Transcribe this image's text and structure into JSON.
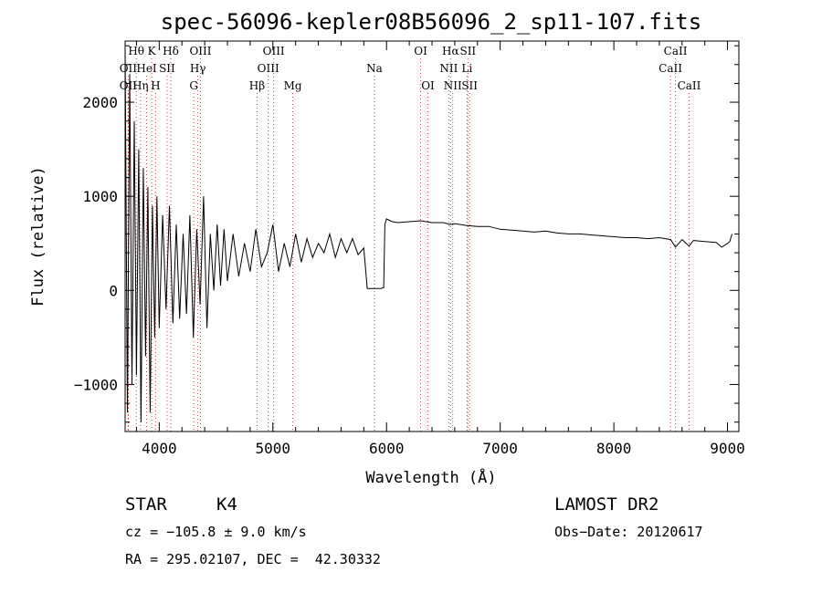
{
  "chart_data": {
    "type": "line",
    "title": "spec-56096-kepler08B56096_2_sp11-107.fits",
    "xlabel": "Wavelength (Å)",
    "ylabel": "Flux (relative)",
    "xlim": [
      3700,
      9100
    ],
    "ylim": [
      -1500,
      2650
    ],
    "xticks": [
      4000,
      5000,
      6000,
      7000,
      8000,
      9000
    ],
    "xtick_labels": [
      "4000",
      "5000",
      "6000",
      "7000",
      "8000",
      "9000"
    ],
    "yticks": [
      -1000,
      0,
      1000,
      2000
    ],
    "ytick_labels": [
      "−1000",
      "0",
      "1000",
      "2000"
    ],
    "grid": false,
    "legend": "none",
    "line_color": "#000000",
    "marker_color": "#d04040",
    "series": [
      {
        "x": [
          3700,
          3720,
          3740,
          3760,
          3780,
          3800,
          3820,
          3840,
          3860,
          3880,
          3900,
          3920,
          3940,
          3960,
          3980,
          4000,
          4030,
          4060,
          4090,
          4120,
          4150,
          4180,
          4210,
          4240,
          4270,
          4300,
          4330,
          4360,
          4390,
          4420,
          4450,
          4480,
          4510,
          4540,
          4570,
          4600,
          4650,
          4700,
          4750,
          4800,
          4850,
          4900,
          4950,
          5000,
          5050,
          5100,
          5150,
          5200,
          5250,
          5300,
          5350,
          5400,
          5450,
          5500,
          5550,
          5600,
          5650,
          5700,
          5750,
          5800,
          5830,
          5850,
          5900,
          5950,
          5975,
          5985,
          6000,
          6050,
          6100,
          6200,
          6300,
          6400,
          6500,
          6560,
          6600,
          6700,
          6800,
          6900,
          7000,
          7100,
          7200,
          7300,
          7400,
          7500,
          7600,
          7700,
          7800,
          7900,
          8000,
          8100,
          8200,
          8300,
          8400,
          8500,
          8542,
          8600,
          8662,
          8700,
          8800,
          8900,
          8950,
          9000,
          9020,
          9040
        ],
        "y": [
          2600,
          -1300,
          2300,
          -1000,
          1800,
          -900,
          1500,
          -1400,
          1300,
          -700,
          1100,
          -1300,
          900,
          -500,
          1000,
          -400,
          800,
          -200,
          900,
          -350,
          700,
          -300,
          600,
          -250,
          800,
          -500,
          650,
          -150,
          1000,
          -400,
          600,
          0,
          700,
          50,
          650,
          100,
          600,
          150,
          500,
          200,
          650,
          250,
          400,
          700,
          200,
          500,
          250,
          600,
          300,
          550,
          350,
          500,
          400,
          600,
          350,
          550,
          400,
          550,
          380,
          450,
          20,
          20,
          20,
          20,
          30,
          700,
          760,
          730,
          720,
          730,
          740,
          720,
          720,
          700,
          710,
          690,
          680,
          680,
          650,
          640,
          630,
          620,
          630,
          610,
          600,
          600,
          590,
          580,
          570,
          560,
          560,
          550,
          560,
          540,
          460,
          540,
          470,
          530,
          520,
          510,
          460,
          500,
          520,
          600
        ]
      }
    ],
    "lines": {
      "row1": [
        {
          "label": "Hθ",
          "x": 3798
        },
        {
          "label": "K",
          "x": 3934
        },
        {
          "label": "Hδ",
          "x": 4102
        },
        {
          "label": "OIII",
          "x": 4363
        },
        {
          "label": "OIII",
          "x": 5007
        },
        {
          "label": "OI",
          "x": 6300
        },
        {
          "label": "Hα",
          "x": 6563
        },
        {
          "label": "SII",
          "x": 6716
        },
        {
          "label": "CaII",
          "x": 8542
        }
      ],
      "row2": [
        {
          "label": "OII",
          "x": 3727
        },
        {
          "label": "HeI",
          "x": 3889
        },
        {
          "label": "SII",
          "x": 4069
        },
        {
          "label": "Hγ",
          "x": 4340
        },
        {
          "label": "OIII",
          "x": 4959
        },
        {
          "label": "Na",
          "x": 5893
        },
        {
          "label": "NII",
          "x": 6548
        },
        {
          "label": "Li",
          "x": 6708
        },
        {
          "label": "CaII",
          "x": 8498
        }
      ],
      "row3": [
        {
          "label": "OII",
          "x": 3727
        },
        {
          "label": "Hη",
          "x": 3835
        },
        {
          "label": "H",
          "x": 3968
        },
        {
          "label": "G",
          "x": 4304
        },
        {
          "label": "Hβ",
          "x": 4861
        },
        {
          "label": "Mg",
          "x": 5175
        },
        {
          "label": "OI",
          "x": 6364
        },
        {
          "label": "NII",
          "x": 6583
        },
        {
          "label": "SII",
          "x": 6731
        },
        {
          "label": "CaII",
          "x": 8662
        }
      ]
    }
  },
  "info": {
    "class_label": "STAR",
    "subclass": "K4",
    "survey": "LAMOST DR2",
    "cz": "cz = −105.8 ± 9.0 km/s",
    "obs_date": "Obs−Date: 20120617",
    "coords": "RA = 295.02107, DEC =  42.30332"
  }
}
